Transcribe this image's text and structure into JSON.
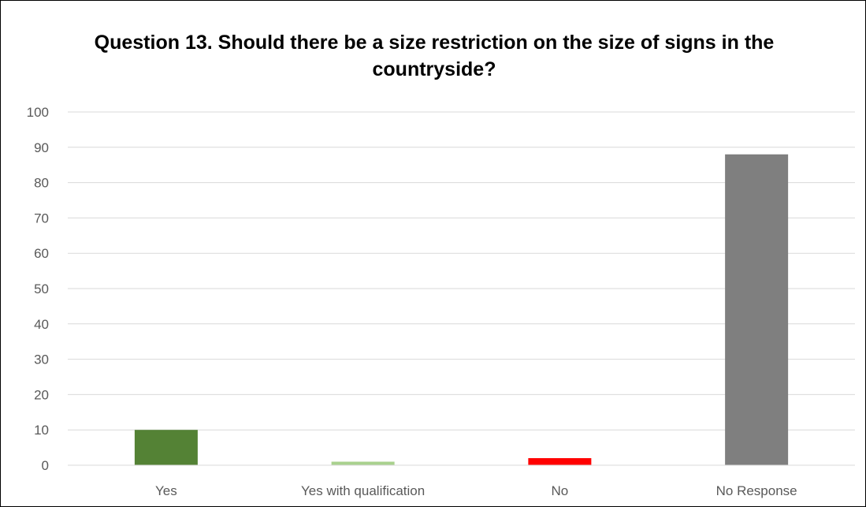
{
  "chart_data": {
    "type": "bar",
    "title": "Question 13. Should there be a size restriction on the size of signs in the countryside?",
    "categories": [
      "Yes",
      "Yes with qualification",
      "No",
      "No Response"
    ],
    "values": [
      10,
      1,
      2,
      88
    ],
    "colors": [
      "#548235",
      "#a9d18e",
      "#ff0000",
      "#7f7f7f"
    ],
    "xlabel": "",
    "ylabel": "",
    "ylim": [
      0,
      100
    ],
    "yticks": [
      0,
      10,
      20,
      30,
      40,
      50,
      60,
      70,
      80,
      90,
      100
    ],
    "grid": true,
    "legend": "none"
  }
}
